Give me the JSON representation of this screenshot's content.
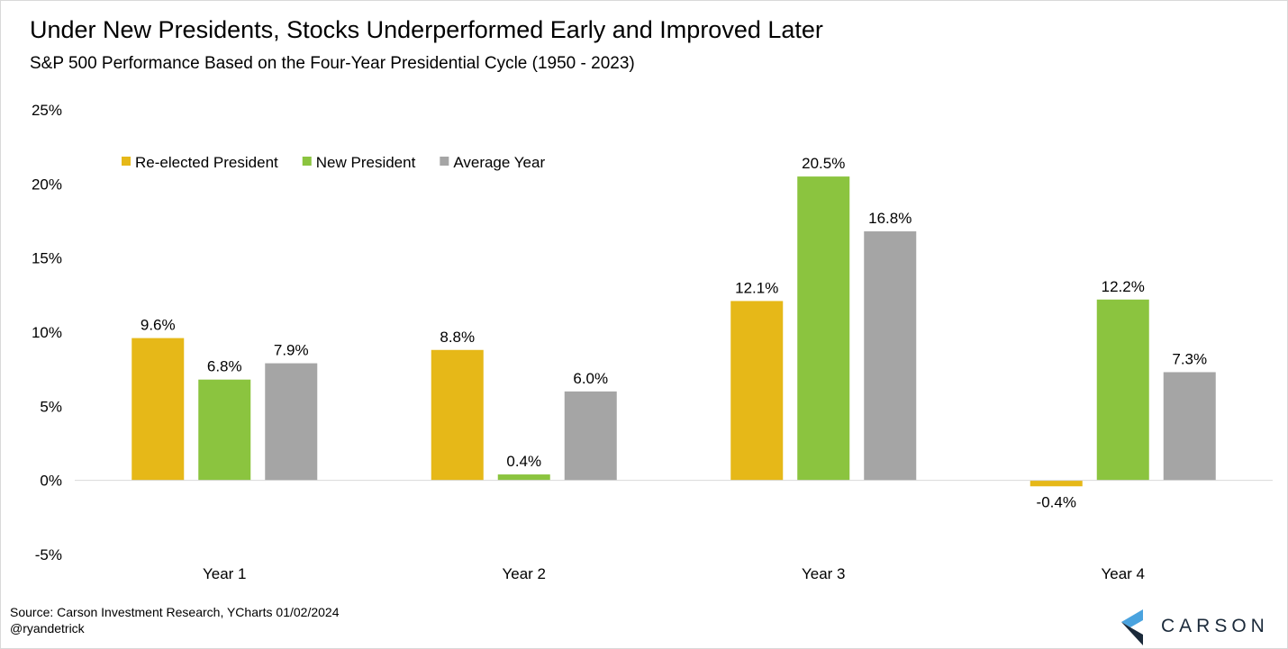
{
  "header": {
    "title": "Under New Presidents, Stocks Underperformed Early and Improved Later",
    "subtitle": "S&P 500 Performance Based on the Four-Year Presidential Cycle (1950 - 2023)"
  },
  "footer": {
    "source": "Source: Carson Investment Research, YCharts 01/02/2024",
    "handle": "@ryandetrick"
  },
  "logo": {
    "text": "CARSON",
    "icon": "carson-chevron-icon"
  },
  "chart_data": {
    "type": "bar",
    "categories": [
      "Year 1",
      "Year 2",
      "Year 3",
      "Year 4"
    ],
    "series": [
      {
        "name": "Re-elected President",
        "color": "#E6B818",
        "values": [
          9.6,
          8.8,
          12.1,
          -0.4
        ],
        "labels": [
          "9.6%",
          "8.8%",
          "12.1%",
          "-0.4%"
        ]
      },
      {
        "name": "New President",
        "color": "#8BC43F",
        "values": [
          6.8,
          0.4,
          20.5,
          12.2
        ],
        "labels": [
          "6.8%",
          "0.4%",
          "20.5%",
          "12.2%"
        ]
      },
      {
        "name": "Average Year",
        "color": "#A5A5A5",
        "values": [
          7.9,
          6.0,
          16.8,
          7.3
        ],
        "labels": [
          "7.9%",
          "6.0%",
          "16.8%",
          "7.3%"
        ]
      }
    ],
    "ylim": [
      -5,
      25
    ],
    "yticks": [
      -5,
      0,
      5,
      10,
      15,
      20,
      25
    ],
    "ytick_labels": [
      "-5%",
      "0%",
      "5%",
      "10%",
      "15%",
      "20%",
      "25%"
    ],
    "legend_position": "top-left",
    "grid": false
  }
}
